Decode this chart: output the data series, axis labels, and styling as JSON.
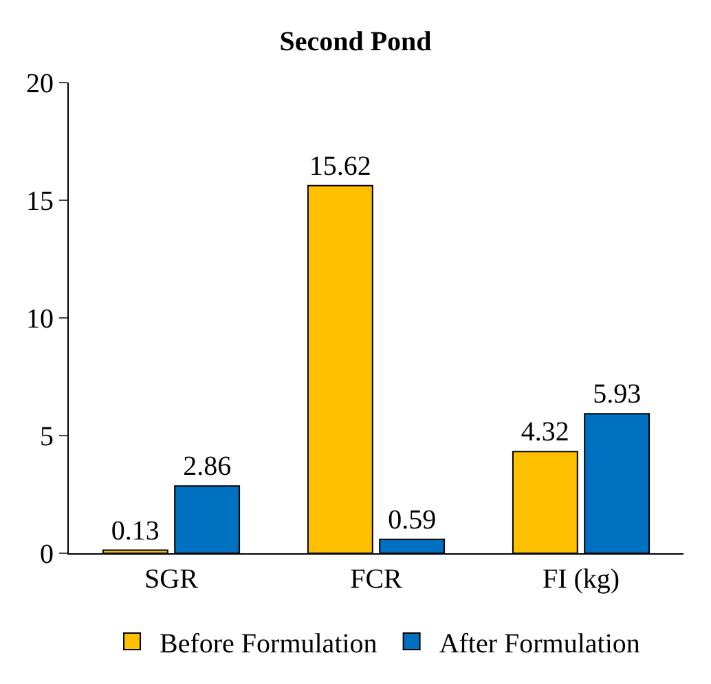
{
  "chart_data": {
    "type": "bar",
    "title": "Second Pond",
    "categories": [
      "SGR",
      "FCR",
      "FI (kg)"
    ],
    "series": [
      {
        "name": "Before Formulation",
        "color": "#ffc000",
        "values": [
          0.13,
          15.62,
          4.32
        ]
      },
      {
        "name": "After Formulation",
        "color": "#0070c0",
        "values": [
          2.86,
          0.59,
          5.93
        ]
      }
    ],
    "ylim": [
      0,
      20
    ],
    "yticks": [
      0,
      5,
      10,
      15,
      20
    ],
    "legend": "bottom",
    "data_labels": true
  }
}
